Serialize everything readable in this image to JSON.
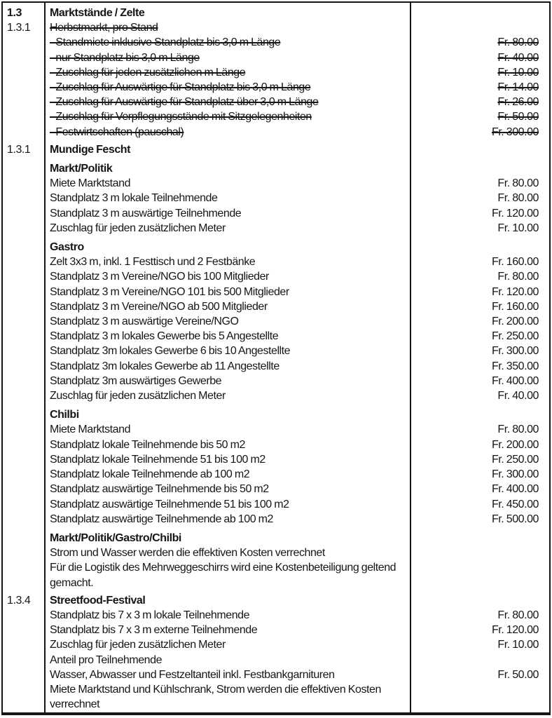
{
  "document": {
    "section_number": "1.3",
    "section_title": "Marktstände / Zelte",
    "currency": "Fr.",
    "blocks": [
      {
        "number": "1.3.1",
        "title": "Herbstmarkt, pro Stand",
        "struck": true,
        "groups": [
          {
            "header": null,
            "rows": [
              {
                "label": "- Standmiete inklusive Standplatz bis 3,0 m Länge",
                "price": "Fr. 80.00"
              },
              {
                "label": "- nur Standplatz bis 3,0 m Länge",
                "price": "Fr. 40.00"
              },
              {
                "label": "- Zuschlag für jeden zusätzlichen m Länge",
                "price": "Fr. 10.00"
              },
              {
                "label": "- Zuschlag für Auswärtige für Standplatz bis 3,0 m Länge",
                "price": "Fr. 14.00"
              },
              {
                "label": "- Zuschlag für Auswärtige für Standplatz über 3,0 m Länge",
                "price": "Fr. 26.00"
              },
              {
                "label": "- Zuschlag für Verpflegungsstände mit Sitzgelegenheiten",
                "price": "Fr. 50.00"
              },
              {
                "label": "- Festwirtschaften (pauschal)",
                "price": "Fr. 300.00"
              }
            ]
          }
        ]
      },
      {
        "number": "1.3.1",
        "title": "Mundige Fescht",
        "struck": false,
        "groups": [
          {
            "header": "Markt/Politik",
            "rows": [
              {
                "label": "Miete Marktstand",
                "price": "Fr. 80.00"
              },
              {
                "label": "Standplatz 3 m lokale Teilnehmende",
                "price": "Fr. 80.00"
              },
              {
                "label": "Standplatz 3 m auswärtige Teilnehmende",
                "price": "Fr. 120.00"
              },
              {
                "label": "Zuschlag für jeden zusätzlichen Meter",
                "price": "Fr. 10.00"
              }
            ]
          },
          {
            "header": "Gastro",
            "rows": [
              {
                "label": "Zelt 3x3 m, inkl. 1 Festtisch und 2 Festbänke",
                "price": "Fr. 160.00"
              },
              {
                "label": "Standplatz 3 m Vereine/NGO bis 100 Mitglieder",
                "price": "Fr. 80.00"
              },
              {
                "label": "Standplatz 3 m Vereine/NGO 101 bis 500 Mitglieder",
                "price": "Fr. 120.00"
              },
              {
                "label": "Standplatz 3 m Vereine/NGO ab 500 Mitglieder",
                "price": "Fr. 160.00"
              },
              {
                "label": "Standplatz 3 m auswärtige Vereine/NGO",
                "price": "Fr. 200.00"
              },
              {
                "label": "Standplatz 3 m lokales Gewerbe bis 5 Angestellte",
                "price": "Fr. 250.00"
              },
              {
                "label": "Standplatz 3m lokales Gewerbe 6 bis 10 Angestellte",
                "price": "Fr. 300.00"
              },
              {
                "label": "Standplatz 3m lokales Gewerbe ab 11 Angestellte",
                "price": "Fr. 350.00"
              },
              {
                "label": "Standplatz 3m auswärtiges Gewerbe",
                "price": "Fr. 400.00"
              },
              {
                "label": "Zuschlag für jeden zusätzlichen Meter",
                "price": "Fr. 40.00"
              }
            ]
          },
          {
            "header": "Chilbi",
            "rows": [
              {
                "label": "Miete Marktstand",
                "price": "Fr. 80.00"
              },
              {
                "label": "Standplatz lokale Teilnehmende bis 50 m2",
                "price": "Fr. 200.00"
              },
              {
                "label": "Standplatz lokale Teilnehmende 51 bis 100 m2",
                "price": "Fr. 250.00"
              },
              {
                "label": "Standplatz lokale Teilnehmende ab 100 m2",
                "price": "Fr. 300.00"
              },
              {
                "label": "Standplatz auswärtige Teilnehmende bis 50 m2",
                "price": "Fr. 400.00"
              },
              {
                "label": "Standplatz auswärtige Teilnehmende 51 bis 100 m2",
                "price": "Fr. 450.00"
              },
              {
                "label": "Standplatz auswärtige Teilnehmende ab 100 m2",
                "price": "Fr. 500.00"
              }
            ]
          },
          {
            "header": "Markt/Politik/Gastro/Chilbi",
            "rows": [
              {
                "label": "Strom und Wasser werden die effektiven Kosten verrechnet",
                "price": ""
              },
              {
                "label": "Für die Logistik des Mehrweggeschirrs wird eine Kostenbeteiligung geltend gemacht.",
                "price": ""
              }
            ]
          }
        ]
      },
      {
        "number": "1.3.4",
        "title": "Streetfood-Festival",
        "struck": false,
        "groups": [
          {
            "header": null,
            "rows": [
              {
                "label": "Standplatz bis 7 x 3 m lokale Teilnehmende",
                "price": "Fr. 80.00"
              },
              {
                "label": "Standplatz bis 7 x 3 m externe Teilnehmende",
                "price": "Fr. 120.00"
              },
              {
                "label": "Zuschlag für jeden zusätzlichen Meter",
                "price": "Fr. 10.00"
              },
              {
                "label": "Anteil pro Teilnehmende",
                "price": ""
              },
              {
                "label": "Wasser, Abwasser und Festzeltanteil inkl. Festbankgarnituren",
                "price": "Fr. 50.00"
              },
              {
                "label": "Miete Marktstand und Kühlschrank, Strom werden die effektiven Kosten verrechnet",
                "price": ""
              }
            ]
          }
        ]
      }
    ]
  }
}
